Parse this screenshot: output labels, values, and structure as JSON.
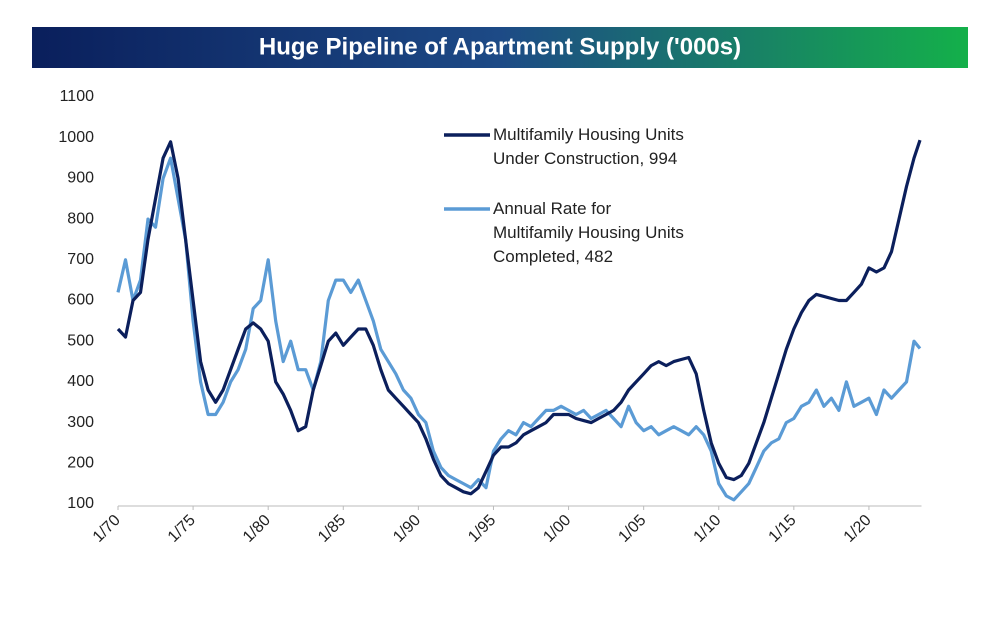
{
  "chart_data": {
    "type": "line",
    "title": "Huge Pipeline of Apartment Supply ('000s)",
    "x": [
      1970,
      1970.5,
      1971,
      1971.5,
      1972,
      1972.5,
      1973,
      1973.5,
      1974,
      1974.5,
      1975,
      1975.5,
      1976,
      1976.5,
      1977,
      1977.5,
      1978,
      1978.5,
      1979,
      1979.5,
      1980,
      1980.5,
      1981,
      1981.5,
      1982,
      1982.5,
      1983,
      1983.5,
      1984,
      1984.5,
      1985,
      1985.5,
      1986,
      1986.5,
      1987,
      1987.5,
      1988,
      1988.5,
      1989,
      1989.5,
      1990,
      1990.5,
      1991,
      1991.5,
      1992,
      1992.5,
      1993,
      1993.5,
      1994,
      1994.5,
      1995,
      1995.5,
      1996,
      1996.5,
      1997,
      1997.5,
      1998,
      1998.5,
      1999,
      1999.5,
      2000,
      2000.5,
      2001,
      2001.5,
      2002,
      2002.5,
      2003,
      2003.5,
      2004,
      2004.5,
      2005,
      2005.5,
      2006,
      2006.5,
      2007,
      2007.5,
      2008,
      2008.5,
      2009,
      2009.5,
      2010,
      2010.5,
      2011,
      2011.5,
      2012,
      2012.5,
      2013,
      2013.5,
      2014,
      2014.5,
      2015,
      2015.5,
      2016,
      2016.5,
      2017,
      2017.5,
      2018,
      2018.5,
      2019,
      2019.5,
      2020,
      2020.5,
      2021,
      2021.5,
      2022,
      2022.5,
      2023,
      2023.4
    ],
    "series": [
      {
        "name": "Multifamily Housing Units\nUnder Construction, 994",
        "color": "#0b1f5c",
        "values": [
          530,
          510,
          600,
          620,
          750,
          850,
          950,
          990,
          900,
          750,
          600,
          450,
          380,
          350,
          380,
          430,
          480,
          530,
          545,
          530,
          500,
          400,
          370,
          330,
          280,
          290,
          380,
          440,
          500,
          520,
          490,
          510,
          530,
          530,
          490,
          430,
          380,
          360,
          340,
          320,
          300,
          260,
          210,
          170,
          150,
          140,
          130,
          125,
          140,
          180,
          220,
          240,
          240,
          250,
          270,
          280,
          290,
          300,
          320,
          320,
          320,
          310,
          305,
          300,
          310,
          320,
          330,
          350,
          380,
          400,
          420,
          440,
          450,
          440,
          450,
          455,
          460,
          420,
          330,
          250,
          200,
          165,
          160,
          170,
          200,
          250,
          300,
          360,
          420,
          480,
          530,
          570,
          600,
          615,
          610,
          605,
          600,
          600,
          620,
          640,
          680,
          670,
          680,
          720,
          800,
          880,
          950,
          994
        ]
      },
      {
        "name": "Annual Rate for\nMultifamily Housing Units\nCompleted, 482",
        "color": "#5b9bd5",
        "values": [
          620,
          700,
          600,
          650,
          800,
          780,
          900,
          950,
          850,
          750,
          550,
          400,
          320,
          320,
          350,
          400,
          430,
          480,
          580,
          600,
          700,
          550,
          450,
          500,
          430,
          430,
          380,
          450,
          600,
          650,
          650,
          620,
          650,
          600,
          550,
          480,
          450,
          420,
          380,
          360,
          320,
          300,
          230,
          190,
          170,
          160,
          150,
          140,
          160,
          140,
          230,
          260,
          280,
          270,
          300,
          290,
          310,
          330,
          330,
          340,
          330,
          320,
          330,
          310,
          320,
          330,
          310,
          290,
          340,
          300,
          280,
          290,
          270,
          280,
          290,
          280,
          270,
          290,
          270,
          230,
          150,
          120,
          110,
          130,
          150,
          190,
          230,
          250,
          260,
          300,
          310,
          340,
          350,
          380,
          340,
          360,
          330,
          400,
          340,
          350,
          360,
          320,
          380,
          360,
          380,
          400,
          500,
          482
        ]
      }
    ],
    "xlim": [
      1970,
      2023.5
    ],
    "xticks": [
      {
        "value": 1970,
        "label": "1/70"
      },
      {
        "value": 1975,
        "label": "1/75"
      },
      {
        "value": 1980,
        "label": "1/80"
      },
      {
        "value": 1985,
        "label": "1/85"
      },
      {
        "value": 1990,
        "label": "1/90"
      },
      {
        "value": 1995,
        "label": "1/95"
      },
      {
        "value": 2000,
        "label": "1/00"
      },
      {
        "value": 2005,
        "label": "1/05"
      },
      {
        "value": 2010,
        "label": "1/10"
      },
      {
        "value": 2015,
        "label": "1/15"
      },
      {
        "value": 2020,
        "label": "1/20"
      }
    ],
    "ylim": [
      100,
      1100
    ],
    "yticks": [
      100,
      200,
      300,
      400,
      500,
      600,
      700,
      800,
      900,
      1000,
      1100
    ],
    "grid": false
  }
}
